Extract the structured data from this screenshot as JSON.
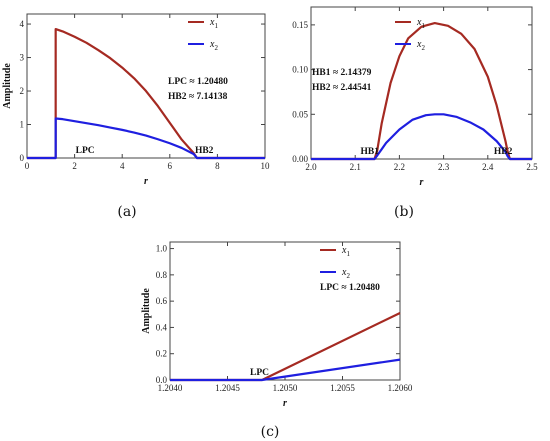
{
  "chart_data": [
    {
      "type": "line",
      "panel_label": "(a)",
      "xlabel": "r",
      "ylabel": "Amplitude",
      "xlim": [
        0,
        10
      ],
      "ylim": [
        0,
        4.3
      ],
      "xticks": [
        "0",
        "2",
        "4",
        "6",
        "8",
        "10"
      ],
      "xtick_values": [
        0,
        2,
        4,
        6,
        8,
        10
      ],
      "yticks": [
        "0",
        "1",
        "2",
        "3",
        "4"
      ],
      "ytick_values": [
        0,
        1,
        2,
        3,
        4
      ],
      "series": [
        {
          "name": "x",
          "subscript": "1",
          "color": "#a52a22",
          "x": [
            0,
            1.15,
            1.2048,
            1.2048,
            1.5,
            2,
            2.5,
            3,
            3.5,
            4,
            4.5,
            5,
            5.5,
            6,
            6.5,
            7,
            7.14,
            8,
            9,
            10
          ],
          "y": [
            0,
            0,
            0,
            3.85,
            3.78,
            3.62,
            3.44,
            3.22,
            2.98,
            2.7,
            2.38,
            2.0,
            1.55,
            1.05,
            0.55,
            0.15,
            0,
            0,
            0,
            0
          ]
        },
        {
          "name": "x",
          "subscript": "2",
          "color": "#1f1fe0",
          "x": [
            0,
            1.15,
            1.2048,
            1.2048,
            1.5,
            2,
            2.5,
            3,
            3.5,
            4,
            4.5,
            5,
            5.5,
            6,
            6.5,
            7,
            7.14,
            8,
            9,
            10
          ],
          "y": [
            0,
            0,
            0,
            1.18,
            1.16,
            1.1,
            1.04,
            0.98,
            0.91,
            0.84,
            0.76,
            0.67,
            0.56,
            0.44,
            0.3,
            0.12,
            0,
            0,
            0,
            0
          ]
        }
      ],
      "annotations": [
        {
          "text": "LPC ≈ 1.20480"
        },
        {
          "text": "HB2 ≈ 7.14138"
        },
        {
          "text": "LPC"
        },
        {
          "text": "HB2"
        }
      ]
    },
    {
      "type": "line",
      "panel_label": "(b)",
      "xlabel": "r",
      "ylabel": "",
      "xlim": [
        2.0,
        2.5
      ],
      "ylim": [
        0,
        0.17
      ],
      "xticks": [
        "2.0",
        "2.1",
        "2.2",
        "2.3",
        "2.4",
        "2.5"
      ],
      "xtick_values": [
        2.0,
        2.1,
        2.2,
        2.3,
        2.4,
        2.5
      ],
      "yticks": [
        "0.00",
        "0.05",
        "0.10",
        "0.15"
      ],
      "ytick_values": [
        0,
        0.05,
        0.1,
        0.15
      ],
      "series": [
        {
          "name": "x",
          "subscript": "1",
          "color": "#a52a22",
          "x": [
            2.0,
            2.1,
            2.14379,
            2.15,
            2.16,
            2.18,
            2.2,
            2.22,
            2.25,
            2.28,
            2.31,
            2.34,
            2.37,
            2.4,
            2.42,
            2.44,
            2.445,
            2.45,
            2.5
          ],
          "y": [
            0,
            0,
            0,
            0.01,
            0.04,
            0.085,
            0.115,
            0.135,
            0.148,
            0.152,
            0.149,
            0.14,
            0.123,
            0.092,
            0.06,
            0.02,
            0.008,
            0,
            0
          ]
        },
        {
          "name": "x",
          "subscript": "2",
          "color": "#1f1fe0",
          "x": [
            2.0,
            2.1,
            2.14379,
            2.15,
            2.17,
            2.2,
            2.23,
            2.26,
            2.28,
            2.3,
            2.33,
            2.36,
            2.39,
            2.42,
            2.44,
            2.445,
            2.45,
            2.5
          ],
          "y": [
            0,
            0,
            0,
            0.004,
            0.018,
            0.033,
            0.044,
            0.049,
            0.05,
            0.05,
            0.047,
            0.041,
            0.033,
            0.02,
            0.008,
            0.003,
            0,
            0
          ]
        }
      ],
      "annotations": [
        {
          "text": "HB1 ≈ 2.14379"
        },
        {
          "text": "HB2 ≈ 2.44541"
        },
        {
          "text": "HB1"
        },
        {
          "text": "HB2"
        }
      ]
    },
    {
      "type": "line",
      "panel_label": "(c)",
      "xlabel": "r",
      "ylabel": "Amplitude",
      "xlim": [
        1.204,
        1.206
      ],
      "ylim": [
        0,
        1.05
      ],
      "xticks": [
        "1.2040",
        "1.2045",
        "1.2050",
        "1.2055",
        "1.2060"
      ],
      "xtick_values": [
        1.204,
        1.2045,
        1.205,
        1.2055,
        1.206
      ],
      "yticks": [
        "0.0",
        "0.2",
        "0.4",
        "0.6",
        "0.8",
        "1.0"
      ],
      "ytick_values": [
        0,
        0.2,
        0.4,
        0.6,
        0.8,
        1.0
      ],
      "series": [
        {
          "name": "x",
          "subscript": "1",
          "color": "#a52a22",
          "x": [
            1.204,
            1.2048,
            1.206
          ],
          "y": [
            0,
            0,
            0.51
          ]
        },
        {
          "name": "x",
          "subscript": "2",
          "color": "#1f1fe0",
          "x": [
            1.204,
            1.2048,
            1.206
          ],
          "y": [
            0,
            0,
            0.155
          ]
        }
      ],
      "annotations": [
        {
          "text": "LPC ≈ 1.20480"
        },
        {
          "text": "LPC"
        }
      ]
    }
  ]
}
